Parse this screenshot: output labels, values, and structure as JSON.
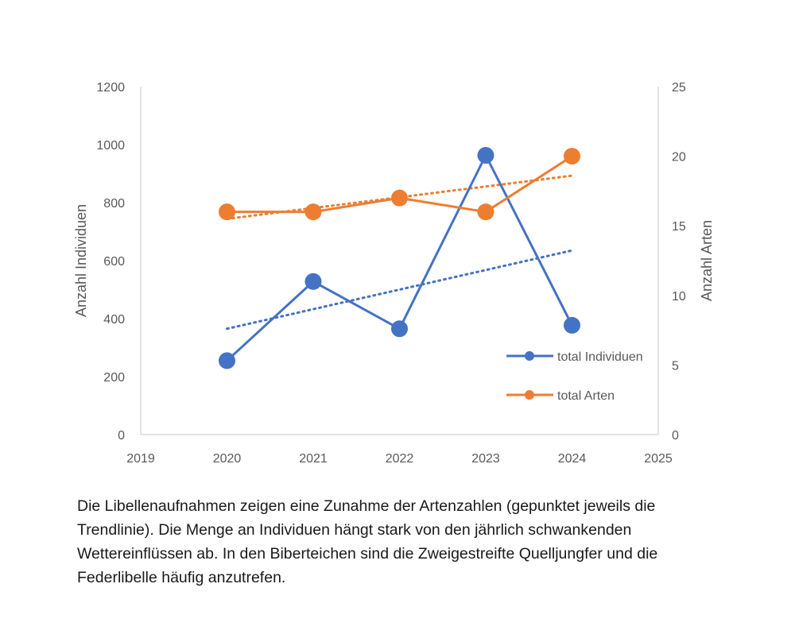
{
  "chart_data": {
    "type": "line",
    "x": [
      2020,
      2021,
      2022,
      2023,
      2024
    ],
    "series": [
      {
        "name": "total Individuen",
        "axis": "left",
        "color": "#4472C4",
        "values": [
          255,
          528,
          365,
          963,
          377
        ],
        "trend": {
          "start": 365,
          "end": 635
        }
      },
      {
        "name": "total Arten",
        "axis": "right",
        "color": "#ED7D31",
        "values": [
          16,
          16,
          17,
          16,
          20
        ],
        "trend": {
          "start": 15.5,
          "end": 18.6
        }
      }
    ],
    "xlim": [
      2019,
      2025
    ],
    "xticks": [
      "2019",
      "2020",
      "2021",
      "2022",
      "2023",
      "2024",
      "2025"
    ],
    "ylim_left": [
      0,
      1200
    ],
    "yticks_left": [
      "0",
      "200",
      "400",
      "600",
      "800",
      "1000",
      "1200"
    ],
    "ylim_right": [
      0,
      25
    ],
    "yticks_right": [
      "0",
      "5",
      "10",
      "15",
      "20",
      "25"
    ],
    "ylabel_left": "Anzahl Individuen",
    "ylabel_right": "Anzahl Arten",
    "legend": [
      "total Individuen",
      "total Arten"
    ],
    "legend_position": "lower-right",
    "trendlines": "dotted"
  },
  "caption": "Die Libellenaufnahmen zeigen eine Zunahme der Artenzahlen (gepunktet jeweils die Trendlinie). Die Menge an Individuen hängt stark von den jährlich schwankenden Wettereinflüssen ab. In den Biberteichen sind die Zweigestreifte Quelljungfer und die Federlibelle häufig anzutrefen."
}
